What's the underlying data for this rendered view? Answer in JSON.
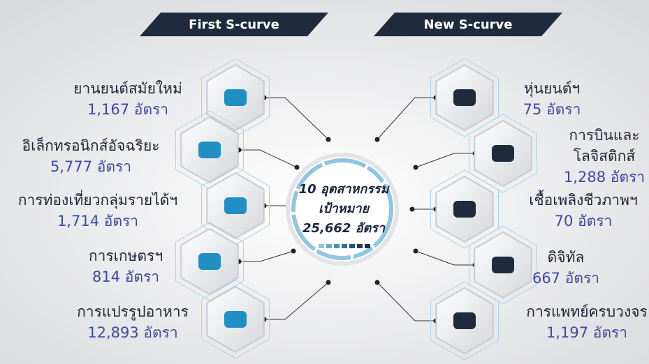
{
  "headers": {
    "left": "First S-curve",
    "right": "New S-curve"
  },
  "center": {
    "lines": [
      "10 อุตสาหกรรม",
      "เป้าหมาย",
      "25,662 อัตรา"
    ]
  },
  "left_items": [
    {
      "name": [
        "ยานยนต์สมัยใหม่"
      ],
      "count": "1,167 อัตรา"
    },
    {
      "name": [
        "อิเล็กทรอนิกส์อัจฉริยะ"
      ],
      "count": "5,777 อัตรา"
    },
    {
      "name": [
        "การท่องเที่ยวกลุ่มรายได้ฯ"
      ],
      "count": "1,714 อัตรา"
    },
    {
      "name": [
        "การเกษตรฯ"
      ],
      "count": "814 อัตรา"
    },
    {
      "name": [
        "การแปรรูปอาหาร"
      ],
      "count": "12,893 อัตรา"
    }
  ],
  "right_items": [
    {
      "name": [
        "หุ่นยนต์ฯ"
      ],
      "count": "75 อัตรา"
    },
    {
      "name": [
        "การบินและ",
        "โลจิสติกส์"
      ],
      "count": "1,288 อัตรา"
    },
    {
      "name": [
        "เชื้อเพลิงชีวภาพฯ"
      ],
      "count": "70 อัตรา"
    },
    {
      "name": [
        "ดิจิทัล"
      ],
      "count": "667 อัตรา"
    },
    {
      "name": [
        "การแพทย์ครบวงจร"
      ],
      "count": "1,197 อัตรา"
    }
  ]
}
